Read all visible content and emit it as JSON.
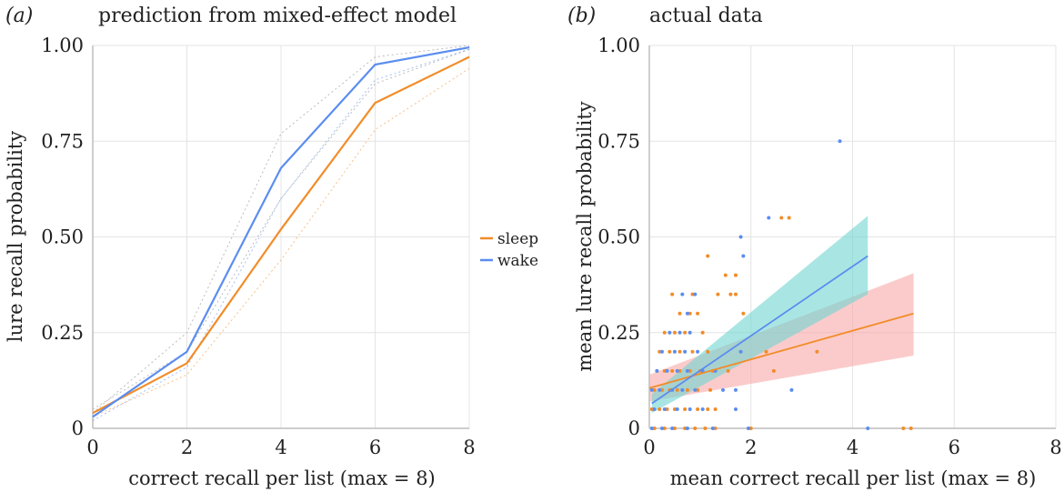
{
  "colors": {
    "sleep": "#f28c28",
    "wake": "#5b8def",
    "sleep_band": "#f9a8a8",
    "wake_band": "#6fd6d0",
    "grid": "#e4e4e4",
    "axis": "#bdbdbd",
    "ci": "#bcbcbc"
  },
  "chart_data": [
    {
      "type": "line",
      "panel_label": "(a)",
      "title": "prediction from mixed-effect model",
      "xlabel": "correct recall per list (max = 8)",
      "ylabel": "lure recall probability",
      "xlim": [
        0,
        8
      ],
      "ylim": [
        0,
        1
      ],
      "xticks": [
        "0",
        "2",
        "4",
        "6",
        "8"
      ],
      "yticks": [
        "0",
        "0.25",
        "0.50",
        "0.75",
        "1.00"
      ],
      "grid": true,
      "legend": {
        "position": "right",
        "items": [
          {
            "name": "sleep",
            "color": "sleep"
          },
          {
            "name": "wake",
            "color": "wake"
          }
        ]
      },
      "x": [
        0,
        2,
        4,
        6,
        8
      ],
      "series": [
        {
          "name": "sleep",
          "color": "sleep",
          "values": [
            0.04,
            0.17,
            0.52,
            0.85,
            0.97
          ],
          "ci_lower": [
            0.03,
            0.14,
            0.44,
            0.78,
            0.94
          ],
          "ci_upper": [
            0.05,
            0.2,
            0.6,
            0.9,
            0.99
          ]
        },
        {
          "name": "wake",
          "color": "wake",
          "values": [
            0.03,
            0.2,
            0.68,
            0.95,
            0.995
          ],
          "ci_lower": [
            0.02,
            0.16,
            0.6,
            0.91,
            0.99
          ],
          "ci_upper": [
            0.04,
            0.25,
            0.77,
            0.97,
            1.0
          ]
        }
      ]
    },
    {
      "type": "scatter",
      "panel_label": "(b)",
      "title": "actual data",
      "xlabel": "mean correct recall per list (max = 8)",
      "ylabel": "mean lure recall probability",
      "xlim": [
        0,
        8
      ],
      "ylim": [
        0,
        1
      ],
      "xticks": [
        "0",
        "2",
        "4",
        "6",
        "8"
      ],
      "yticks": [
        "0",
        "0.25",
        "0.50",
        "0.75",
        "1.00"
      ],
      "grid": true,
      "series": [
        {
          "name": "sleep",
          "color": "sleep",
          "band": "sleep_band",
          "fit": {
            "x": [
              0,
              5.2
            ],
            "y": [
              0.105,
              0.3
            ]
          },
          "band_lower": [
            0.07,
            0.19
          ],
          "band_upper": [
            0.14,
            0.405
          ],
          "points": [
            [
              0.1,
              0.0
            ],
            [
              0.3,
              0.0
            ],
            [
              0.5,
              0.0
            ],
            [
              0.7,
              0.0
            ],
            [
              0.9,
              0.0
            ],
            [
              1.1,
              0.0
            ],
            [
              1.3,
              0.0
            ],
            [
              2.0,
              0.0
            ],
            [
              5.0,
              0.0
            ],
            [
              5.15,
              0.0
            ],
            [
              0.05,
              0.05
            ],
            [
              0.2,
              0.05
            ],
            [
              0.35,
              0.05
            ],
            [
              0.5,
              0.05
            ],
            [
              0.7,
              0.05
            ],
            [
              0.95,
              0.05
            ],
            [
              1.15,
              0.05
            ],
            [
              1.3,
              0.05
            ],
            [
              0.1,
              0.1
            ],
            [
              0.25,
              0.1
            ],
            [
              0.4,
              0.1
            ],
            [
              0.55,
              0.1
            ],
            [
              0.75,
              0.1
            ],
            [
              0.95,
              0.1
            ],
            [
              1.2,
              0.1
            ],
            [
              0.15,
              0.15
            ],
            [
              0.3,
              0.15
            ],
            [
              0.45,
              0.15
            ],
            [
              0.6,
              0.15
            ],
            [
              0.8,
              0.15
            ],
            [
              1.0,
              0.15
            ],
            [
              1.25,
              0.15
            ],
            [
              1.55,
              0.15
            ],
            [
              2.45,
              0.15
            ],
            [
              0.2,
              0.2
            ],
            [
              0.4,
              0.2
            ],
            [
              0.6,
              0.2
            ],
            [
              0.85,
              0.2
            ],
            [
              1.15,
              0.2
            ],
            [
              2.3,
              0.2
            ],
            [
              3.3,
              0.2
            ],
            [
              0.3,
              0.25
            ],
            [
              0.5,
              0.25
            ],
            [
              0.7,
              0.25
            ],
            [
              1.05,
              0.25
            ],
            [
              0.6,
              0.3
            ],
            [
              0.8,
              0.3
            ],
            [
              0.95,
              0.3
            ],
            [
              1.85,
              0.3
            ],
            [
              0.45,
              0.35
            ],
            [
              0.85,
              0.35
            ],
            [
              1.35,
              0.35
            ],
            [
              1.7,
              0.35
            ],
            [
              1.15,
              0.45
            ],
            [
              1.5,
              0.4
            ],
            [
              1.7,
              0.4
            ],
            [
              1.6,
              0.35
            ],
            [
              2.6,
              0.55
            ],
            [
              2.75,
              0.55
            ]
          ]
        },
        {
          "name": "wake",
          "color": "wake",
          "band": "wake_band",
          "fit": {
            "x": [
              0.05,
              4.3
            ],
            "y": [
              0.065,
              0.45
            ]
          },
          "band_lower": [
            0.04,
            0.35
          ],
          "band_upper": [
            0.09,
            0.555
          ],
          "points": [
            [
              0.05,
              0.0
            ],
            [
              0.25,
              0.0
            ],
            [
              0.45,
              0.0
            ],
            [
              0.75,
              0.0
            ],
            [
              1.25,
              0.0
            ],
            [
              1.95,
              0.0
            ],
            [
              4.3,
              0.0
            ],
            [
              0.1,
              0.05
            ],
            [
              0.3,
              0.05
            ],
            [
              0.55,
              0.05
            ],
            [
              0.8,
              0.05
            ],
            [
              1.05,
              0.05
            ],
            [
              1.7,
              0.05
            ],
            [
              0.05,
              0.1
            ],
            [
              0.2,
              0.1
            ],
            [
              0.45,
              0.1
            ],
            [
              0.65,
              0.1
            ],
            [
              0.9,
              0.1
            ],
            [
              1.45,
              0.1
            ],
            [
              1.7,
              0.1
            ],
            [
              2.8,
              0.1
            ],
            [
              0.15,
              0.15
            ],
            [
              0.35,
              0.15
            ],
            [
              0.55,
              0.15
            ],
            [
              0.75,
              0.15
            ],
            [
              1.05,
              0.15
            ],
            [
              1.3,
              0.15
            ],
            [
              0.25,
              0.2
            ],
            [
              0.5,
              0.2
            ],
            [
              0.7,
              0.2
            ],
            [
              0.95,
              0.2
            ],
            [
              1.8,
              0.2
            ],
            [
              0.4,
              0.25
            ],
            [
              0.6,
              0.25
            ],
            [
              0.8,
              0.25
            ],
            [
              0.75,
              0.3
            ],
            [
              0.65,
              0.35
            ],
            [
              0.9,
              0.35
            ],
            [
              1.85,
              0.45
            ],
            [
              1.8,
              0.5
            ],
            [
              2.35,
              0.55
            ],
            [
              3.75,
              0.75
            ]
          ]
        }
      ]
    }
  ]
}
